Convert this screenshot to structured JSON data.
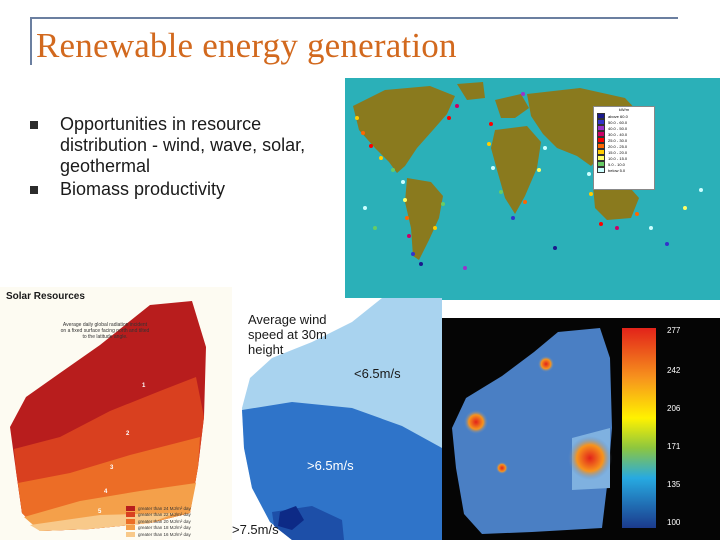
{
  "slide": {
    "title": "Renewable energy generation",
    "bullets": [
      "Opportunities in resource distribution - wind, wave, solar, geothermal",
      "Biomass productivity"
    ],
    "colors": {
      "title": "#d2691e",
      "frame": "#6b7fa0"
    }
  },
  "world_map": {
    "legend_header": "kW/m",
    "legend": [
      {
        "label": "above  60.0",
        "color": "#1a1a8c"
      },
      {
        "label": "50.0 - 60.0",
        "color": "#3333cc"
      },
      {
        "label": "40.0 - 50.0",
        "color": "#9933cc"
      },
      {
        "label": "30.0 - 40.0",
        "color": "#cc0066"
      },
      {
        "label": "25.0 - 30.0",
        "color": "#ff0000"
      },
      {
        "label": "20.0 - 25.0",
        "color": "#ff6600"
      },
      {
        "label": "15.0 - 20.0",
        "color": "#ffcc00"
      },
      {
        "label": "10.0 - 15.0",
        "color": "#ffff66"
      },
      {
        "label": "5.0 - 10.0",
        "color": "#66cc66"
      },
      {
        "label": "below  5.0",
        "color": "#ccffff"
      }
    ]
  },
  "solar_map": {
    "title": "Solar Resources",
    "note": "Average daily global radiation incident on a fixed surface facing north and tilted to the latitude angle.",
    "zones": [
      "1",
      "2",
      "3",
      "4",
      "5"
    ],
    "legend": [
      {
        "label": "greater than 24 MJ/m² day",
        "color": "#b81d1d"
      },
      {
        "label": "greater than 22 MJ/m² day",
        "color": "#d9401f"
      },
      {
        "label": "greater than 20 MJ/m² day",
        "color": "#ec6d26"
      },
      {
        "label": "greater than 18 MJ/m² day",
        "color": "#f4a04a"
      },
      {
        "label": "greater than 16 MJ/m² day",
        "color": "#f8c98a"
      }
    ]
  },
  "wind_map": {
    "title": "Average wind speed at 30m height",
    "low_label": "<6.5m/s",
    "high_label": ">6.5m/s",
    "top_label": ">7.5m/s"
  },
  "geothermal_map": {
    "scale_ticks": [
      "277",
      "242",
      "206",
      "171",
      "135",
      "100"
    ]
  }
}
